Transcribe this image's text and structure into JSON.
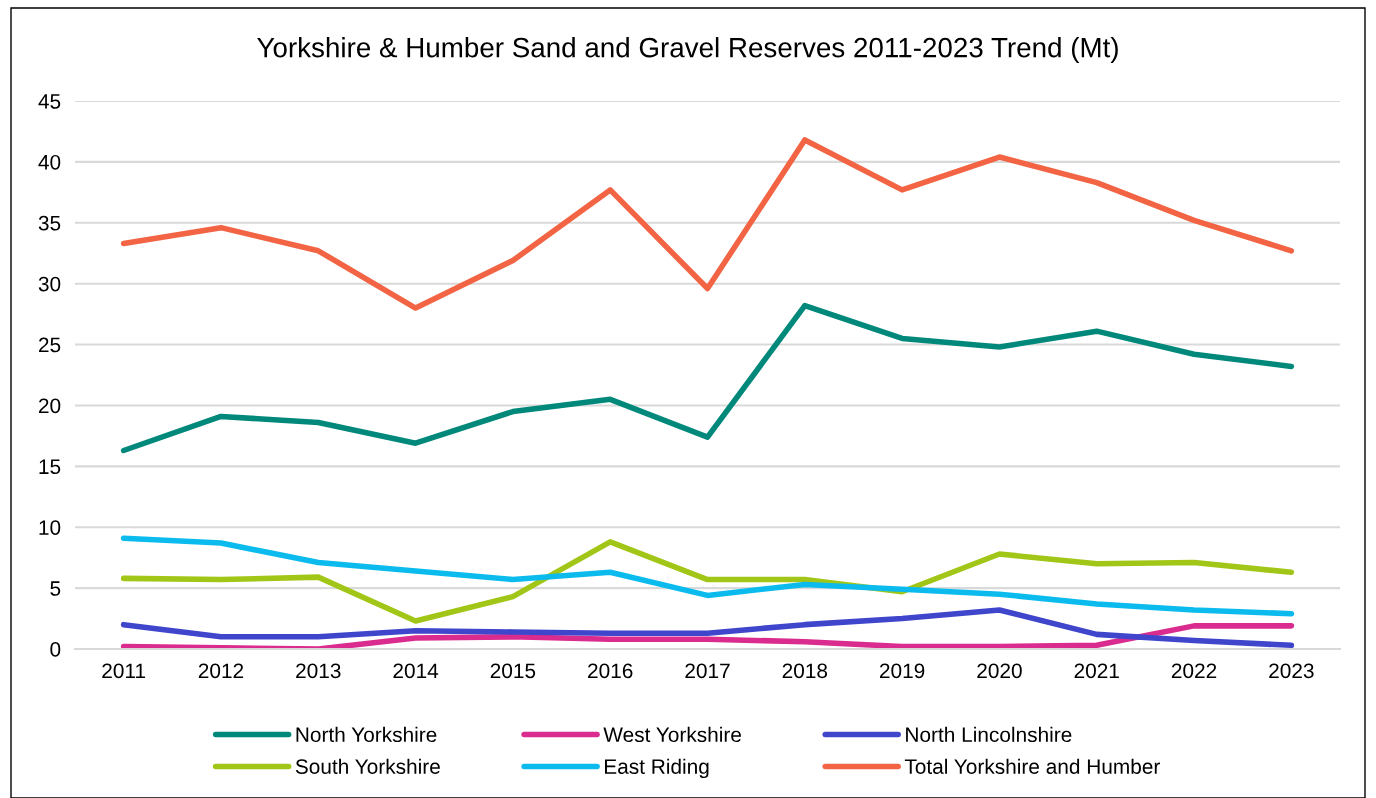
{
  "chart_data": {
    "type": "line",
    "title": "Yorkshire & Humber Sand and Gravel Reserves 2011-2023 Trend (Mt)",
    "categories": [
      "2011",
      "2012",
      "2013",
      "2014",
      "2015",
      "2016",
      "2017",
      "2018",
      "2019",
      "2020",
      "2021",
      "2022",
      "2023"
    ],
    "series": [
      {
        "name": "North Yorkshire",
        "color": "#00897b",
        "values": [
          16.3,
          19.1,
          18.6,
          16.9,
          19.5,
          20.5,
          17.4,
          28.2,
          25.5,
          24.8,
          26.1,
          24.2,
          23.2
        ]
      },
      {
        "name": "South Yorkshire",
        "color": "#a2c617",
        "values": [
          5.8,
          5.7,
          5.9,
          2.3,
          4.3,
          8.8,
          5.7,
          5.7,
          4.7,
          7.8,
          7.0,
          7.1,
          6.3
        ]
      },
      {
        "name": "West Yorkshire",
        "color": "#da2b8e",
        "values": [
          0.2,
          0.1,
          0.0,
          0.9,
          1.0,
          0.8,
          0.8,
          0.6,
          0.2,
          0.2,
          0.3,
          1.9,
          1.9
        ]
      },
      {
        "name": "East Riding",
        "color": "#0cbbee",
        "values": [
          9.1,
          8.7,
          7.1,
          6.4,
          5.7,
          6.3,
          4.4,
          5.3,
          4.9,
          4.5,
          3.7,
          3.2,
          2.9
        ]
      },
      {
        "name": "North Lincolnshire",
        "color": "#4046cc",
        "values": [
          2.0,
          1.0,
          1.0,
          1.5,
          1.4,
          1.3,
          1.3,
          2.0,
          2.5,
          3.2,
          1.2,
          0.7,
          0.3
        ]
      },
      {
        "name": "Total Yorkshire and Humber",
        "color": "#f26444",
        "values": [
          33.3,
          34.6,
          32.7,
          28.0,
          31.9,
          37.7,
          29.6,
          41.8,
          37.7,
          40.4,
          38.3,
          35.2,
          32.7
        ]
      }
    ],
    "ylim": [
      0,
      45
    ],
    "yticks": [
      0,
      5,
      10,
      15,
      20,
      25,
      30,
      35,
      40,
      45
    ],
    "grid": "y",
    "legend": "bottom",
    "marker": "none",
    "line_style": "solid"
  }
}
